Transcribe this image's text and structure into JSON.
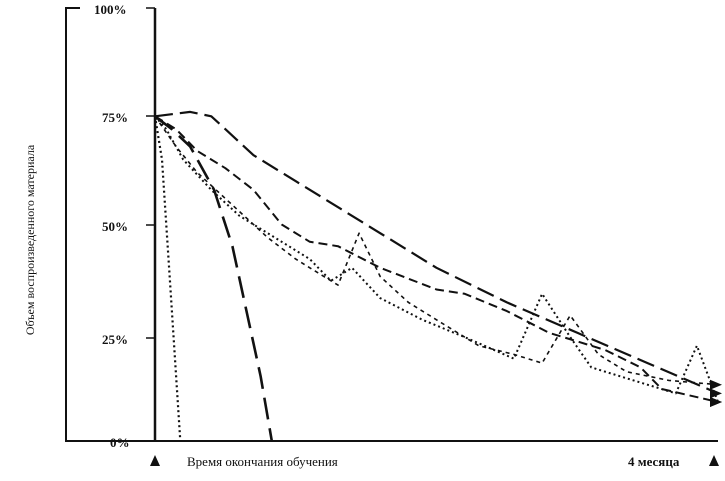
{
  "chart_data": {
    "type": "line",
    "ylabel": "Объем воспроизведенного материала",
    "ylim": [
      0,
      100
    ],
    "yticks": [
      "100%",
      "75%",
      "50%",
      "25%",
      "0%"
    ],
    "xlim": [
      0,
      4
    ],
    "x_start_label": "Время окончания обучения",
    "x_end_label": "4 месяца",
    "grid": false,
    "series": [
      {
        "style": "long-dash",
        "points": [
          [
            0,
            75
          ],
          [
            0.25,
            76
          ],
          [
            0.4,
            75
          ],
          [
            0.5,
            72
          ],
          [
            0.7,
            66
          ],
          [
            1.0,
            60
          ],
          [
            1.5,
            50
          ],
          [
            2.0,
            40
          ],
          [
            2.5,
            32
          ],
          [
            3.0,
            25
          ],
          [
            3.5,
            18
          ],
          [
            4.0,
            11
          ]
        ]
      },
      {
        "style": "short-dash",
        "points": [
          [
            0,
            75
          ],
          [
            0.15,
            72
          ],
          [
            0.3,
            67
          ],
          [
            0.5,
            63
          ],
          [
            0.7,
            58
          ],
          [
            0.9,
            50
          ],
          [
            1.1,
            46
          ],
          [
            1.3,
            45
          ],
          [
            1.6,
            40
          ],
          [
            2.0,
            35
          ],
          [
            2.2,
            34
          ],
          [
            2.5,
            30
          ],
          [
            2.8,
            25
          ],
          [
            3.0,
            23
          ],
          [
            3.2,
            21
          ],
          [
            3.45,
            17
          ],
          [
            3.6,
            12
          ],
          [
            4.0,
            9
          ]
        ]
      },
      {
        "style": "dotted-1",
        "points": [
          [
            0,
            75
          ],
          [
            0.15,
            68
          ],
          [
            0.3,
            62
          ],
          [
            0.6,
            53
          ],
          [
            0.8,
            47
          ],
          [
            1.0,
            42
          ],
          [
            1.1,
            40
          ],
          [
            1.3,
            36
          ],
          [
            1.45,
            48
          ],
          [
            1.6,
            38
          ],
          [
            1.8,
            32
          ],
          [
            2.0,
            28
          ],
          [
            2.3,
            22
          ],
          [
            2.55,
            20
          ],
          [
            2.75,
            18
          ],
          [
            2.95,
            29
          ],
          [
            3.15,
            20
          ],
          [
            3.35,
            16
          ],
          [
            3.65,
            14
          ],
          [
            4.0,
            13
          ]
        ]
      },
      {
        "style": "dotted-2",
        "points": [
          [
            0,
            75
          ],
          [
            0.08,
            72
          ],
          [
            0.2,
            65
          ],
          [
            0.4,
            58
          ],
          [
            0.6,
            52
          ],
          [
            0.9,
            46
          ],
          [
            1.1,
            42
          ],
          [
            1.25,
            37
          ],
          [
            1.4,
            40
          ],
          [
            1.6,
            33
          ],
          [
            1.9,
            28
          ],
          [
            2.2,
            24
          ],
          [
            2.55,
            19
          ],
          [
            2.75,
            34
          ],
          [
            2.95,
            24
          ],
          [
            3.1,
            17
          ],
          [
            3.4,
            14
          ],
          [
            3.7,
            11
          ],
          [
            3.85,
            22
          ],
          [
            4.0,
            9
          ]
        ]
      },
      {
        "style": "dotted-fast",
        "points": [
          [
            0,
            75
          ],
          [
            0.05,
            65
          ],
          [
            0.1,
            40
          ],
          [
            0.15,
            15
          ],
          [
            0.18,
            0
          ]
        ]
      },
      {
        "style": "long-dash-fast",
        "points": [
          [
            0,
            75
          ],
          [
            0.12,
            72
          ],
          [
            0.25,
            68
          ],
          [
            0.42,
            58
          ],
          [
            0.55,
            45
          ],
          [
            0.65,
            30
          ],
          [
            0.75,
            15
          ],
          [
            0.83,
            0
          ]
        ]
      }
    ]
  }
}
